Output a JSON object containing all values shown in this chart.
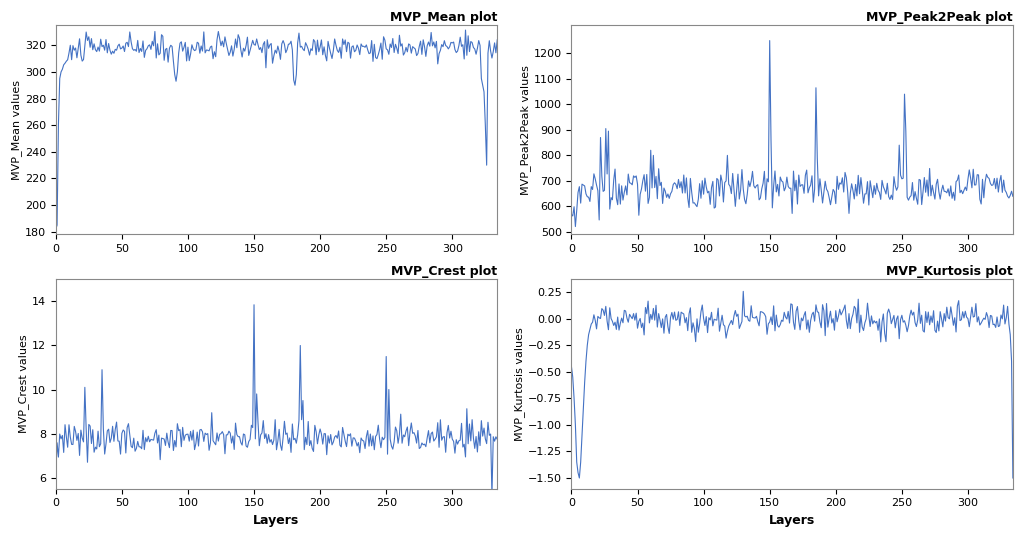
{
  "n_layers": 335,
  "line_color": "#4472C4",
  "line_width": 0.8,
  "background_color": "#ffffff",
  "titles": [
    "MVP_Mean plot",
    "MVP_Peak2Peak plot",
    "MVP_Crest plot",
    "MVP_Kurtosis plot"
  ],
  "ylabels": [
    "MVP_Mean values",
    "MVP_Peak2Peak values",
    "MVP_Crest values",
    "MVP_Kurtosis values"
  ],
  "xlabel": "Layers",
  "mean_ylim": [
    178,
    335
  ],
  "p2p_ylim": [
    490,
    1310
  ],
  "crest_ylim": [
    5.5,
    15
  ],
  "kurt_ylim": [
    -1.6,
    0.37
  ],
  "mean_yticks": [
    180,
    200,
    220,
    240,
    260,
    280,
    300,
    320
  ],
  "p2p_yticks": [
    500,
    600,
    700,
    800,
    900,
    1000,
    1100,
    1200
  ],
  "crest_yticks": [
    6,
    8,
    10,
    12,
    14
  ],
  "kurt_yticks": [
    -1.5,
    -1.25,
    -1.0,
    -0.75,
    -0.5,
    -0.25,
    0.0,
    0.25
  ],
  "xticks": [
    0,
    50,
    100,
    150,
    200,
    250,
    300
  ]
}
